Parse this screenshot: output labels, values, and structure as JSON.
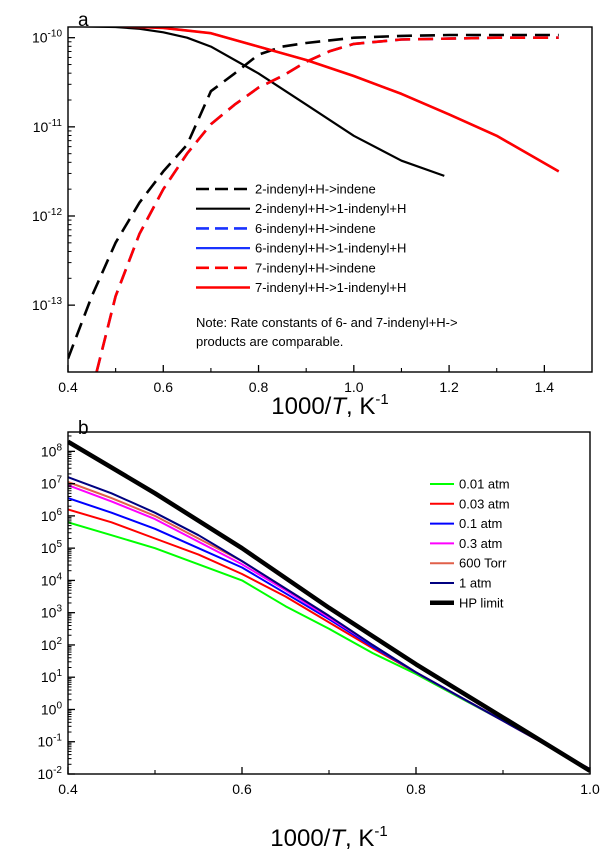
{
  "chart_data": [
    {
      "type": "line",
      "panel_label": "a",
      "xlabel": "1000/T, K-1",
      "xlabel_parts": {
        "pre": "1000/",
        "var": "T",
        "post": ", K",
        "sup": "-1"
      },
      "xlim": [
        0.4,
        1.5
      ],
      "ylim_log10": [
        -13.75,
        -9.88
      ],
      "yscale": "log",
      "xticks": [
        0.4,
        0.6,
        0.8,
        1.0,
        1.2,
        1.4
      ],
      "xtick_labels": [
        "0.4",
        "0.6",
        "0.8",
        "1.0",
        "1.2",
        "1.4"
      ],
      "yticks_exp": [
        -13,
        -12,
        -11,
        -10
      ],
      "ytick_base": "10",
      "ytick_exps": [
        "-13",
        "-12",
        "-11",
        "-10"
      ],
      "legend_placement": "center-right",
      "note": [
        "Note: Rate constants of 6- and 7-indenyl+H->",
        "products are comparable."
      ],
      "series": [
        {
          "name": "2-indenyl+H->indene",
          "color": "#000000",
          "dash": "dashed",
          "width": 2.6,
          "x": [
            0.4,
            0.45,
            0.5,
            0.55,
            0.6,
            0.65,
            0.7,
            0.75,
            0.8,
            0.85,
            0.9,
            1.0,
            1.1,
            1.2,
            1.3,
            1.43
          ],
          "y_log10": [
            -13.6,
            -12.9,
            -12.3,
            -11.85,
            -11.5,
            -11.2,
            -10.6,
            -10.4,
            -10.19,
            -10.1,
            -10.06,
            -10.0,
            -9.98,
            -9.97,
            -9.97,
            -9.97
          ]
        },
        {
          "name": "2-indenyl+H->1-indenyl+H",
          "color": "#000000",
          "dash": "solid",
          "width": 2.2,
          "x": [
            0.4,
            0.5,
            0.55,
            0.6,
            0.65,
            0.7,
            0.8,
            0.9,
            1.0,
            1.1,
            1.19
          ],
          "y_log10": [
            -9.87,
            -9.88,
            -9.9,
            -9.94,
            -10.0,
            -10.1,
            -10.4,
            -10.75,
            -11.1,
            -11.38,
            -11.55
          ]
        },
        {
          "name": "6-indenyl+H->indene",
          "color": "#1a33ff",
          "dash": "dashed",
          "width": 2.6,
          "x": [
            0.46,
            0.5,
            0.55,
            0.6,
            0.65,
            0.7,
            0.75,
            0.8,
            0.85,
            0.9,
            0.95,
            1.0,
            1.1,
            1.2,
            1.3,
            1.43
          ],
          "y_log10": [
            -13.75,
            -12.9,
            -12.2,
            -11.7,
            -11.3,
            -10.97,
            -10.75,
            -10.56,
            -10.43,
            -10.27,
            -10.15,
            -10.07,
            -10.02,
            -10.01,
            -10.0,
            -10.0
          ]
        },
        {
          "name": "6-indenyl+H->1-indenyl+H",
          "color": "#1a33ff",
          "dash": "solid",
          "width": 2.2,
          "x": [
            0.4,
            0.5,
            0.6,
            0.7,
            0.8,
            0.9,
            1.0,
            1.1,
            1.2,
            1.3,
            1.43
          ],
          "y_log10": [
            -9.87,
            -9.87,
            -9.89,
            -9.95,
            -10.1,
            -10.25,
            -10.43,
            -10.63,
            -10.86,
            -11.1,
            -11.5
          ]
        },
        {
          "name": "7-indenyl+H->indene",
          "color": "#ff0000",
          "dash": "dashed",
          "width": 2.6,
          "x": [
            0.46,
            0.5,
            0.55,
            0.6,
            0.65,
            0.7,
            0.75,
            0.8,
            0.85,
            0.9,
            0.95,
            1.0,
            1.1,
            1.2,
            1.3,
            1.43
          ],
          "y_log10": [
            -13.75,
            -12.9,
            -12.2,
            -11.7,
            -11.3,
            -10.97,
            -10.75,
            -10.56,
            -10.43,
            -10.27,
            -10.15,
            -10.07,
            -10.02,
            -10.01,
            -10.0,
            -10.0
          ]
        },
        {
          "name": "7-indenyl+H->1-indenyl+H",
          "color": "#ff0000",
          "dash": "solid",
          "width": 2.6,
          "x": [
            0.4,
            0.5,
            0.6,
            0.7,
            0.8,
            0.9,
            1.0,
            1.1,
            1.2,
            1.3,
            1.43
          ],
          "y_log10": [
            -9.87,
            -9.87,
            -9.89,
            -9.95,
            -10.1,
            -10.25,
            -10.43,
            -10.63,
            -10.86,
            -11.1,
            -11.5
          ]
        }
      ]
    },
    {
      "type": "line",
      "panel_label": "b",
      "xlabel": "1000/T, K-1",
      "xlabel_parts": {
        "pre": "1000/",
        "var": "T",
        "post": ", K",
        "sup": "-1"
      },
      "xlim": [
        0.4,
        1.0
      ],
      "ylim_log10": [
        -2,
        8.6
      ],
      "yscale": "log",
      "xticks": [
        0.4,
        0.6,
        0.8,
        1.0
      ],
      "xtick_labels": [
        "0.4",
        "0.6",
        "0.8",
        "1.0"
      ],
      "yticks_exp": [
        -2,
        -1,
        0,
        1,
        2,
        3,
        4,
        5,
        6,
        7,
        8
      ],
      "ytick_base": "10",
      "ytick_exps": [
        "-2",
        "-1",
        "0",
        "1",
        "2",
        "3",
        "4",
        "5",
        "6",
        "7",
        "8"
      ],
      "legend_placement": "top-right",
      "series": [
        {
          "name": "0.01 atm",
          "color": "#00ff00",
          "width": 2,
          "x": [
            0.4,
            0.45,
            0.5,
            0.55,
            0.6,
            0.65,
            0.7,
            0.75,
            0.8,
            0.85,
            0.9,
            0.95,
            1.0
          ],
          "y_log10": [
            5.8,
            5.4,
            5.0,
            4.5,
            4.0,
            3.2,
            2.5,
            1.75,
            1.1,
            0.37,
            -0.35,
            -1.1,
            -1.85
          ]
        },
        {
          "name": "0.03 atm",
          "color": "#ff0000",
          "width": 2,
          "x": [
            0.4,
            0.45,
            0.5,
            0.55,
            0.6,
            0.65,
            0.7,
            0.75,
            0.8,
            0.85,
            0.9,
            0.95,
            1.0
          ],
          "y_log10": [
            6.2,
            5.8,
            5.3,
            4.8,
            4.2,
            3.5,
            2.7,
            1.9,
            1.15,
            0.4,
            -0.35,
            -1.1,
            -1.85
          ]
        },
        {
          "name": "0.1 atm",
          "color": "#0000ff",
          "width": 2,
          "x": [
            0.4,
            0.45,
            0.5,
            0.55,
            0.6,
            0.65,
            0.7,
            0.75,
            0.8,
            0.85,
            0.9,
            0.95,
            1.0
          ],
          "y_log10": [
            6.55,
            6.1,
            5.6,
            5.0,
            4.4,
            3.6,
            2.8,
            1.95,
            1.15,
            0.4,
            -0.35,
            -1.1,
            -1.85
          ]
        },
        {
          "name": "0.3 atm",
          "color": "#ff00ff",
          "width": 2,
          "x": [
            0.4,
            0.45,
            0.5,
            0.55,
            0.6,
            0.65,
            0.7,
            0.75,
            0.8,
            0.85,
            0.9,
            0.95,
            1.0
          ],
          "y_log10": [
            6.95,
            6.45,
            5.9,
            5.2,
            4.5,
            3.7,
            2.85,
            2.0,
            1.15,
            0.4,
            -0.35,
            -1.1,
            -1.85
          ]
        },
        {
          "name": "600 Torr",
          "color": "#e0604a",
          "width": 2,
          "x": [
            0.4,
            0.45,
            0.5,
            0.55,
            0.6,
            0.65,
            0.7,
            0.75,
            0.8,
            0.85,
            0.9,
            0.95,
            1.0
          ],
          "y_log10": [
            7.05,
            6.55,
            6.0,
            5.3,
            4.6,
            3.75,
            2.9,
            2.0,
            1.15,
            0.4,
            -0.35,
            -1.1,
            -1.85
          ]
        },
        {
          "name": "1 atm",
          "color": "#000080",
          "width": 2,
          "x": [
            0.4,
            0.45,
            0.5,
            0.55,
            0.6,
            0.65,
            0.7,
            0.75,
            0.8,
            0.85,
            0.9,
            0.95,
            1.0
          ],
          "y_log10": [
            7.2,
            6.7,
            6.1,
            5.4,
            4.6,
            3.75,
            2.9,
            2.0,
            1.15,
            0.4,
            -0.35,
            -1.1,
            -1.85
          ]
        },
        {
          "name": "HP limit",
          "color": "#000000",
          "width": 4.5,
          "x": [
            0.4,
            0.5,
            0.6,
            0.7,
            0.8,
            0.9,
            1.0
          ],
          "y_log10": [
            8.3,
            6.7,
            5.0,
            3.15,
            1.4,
            -0.25,
            -1.9
          ]
        }
      ]
    }
  ]
}
